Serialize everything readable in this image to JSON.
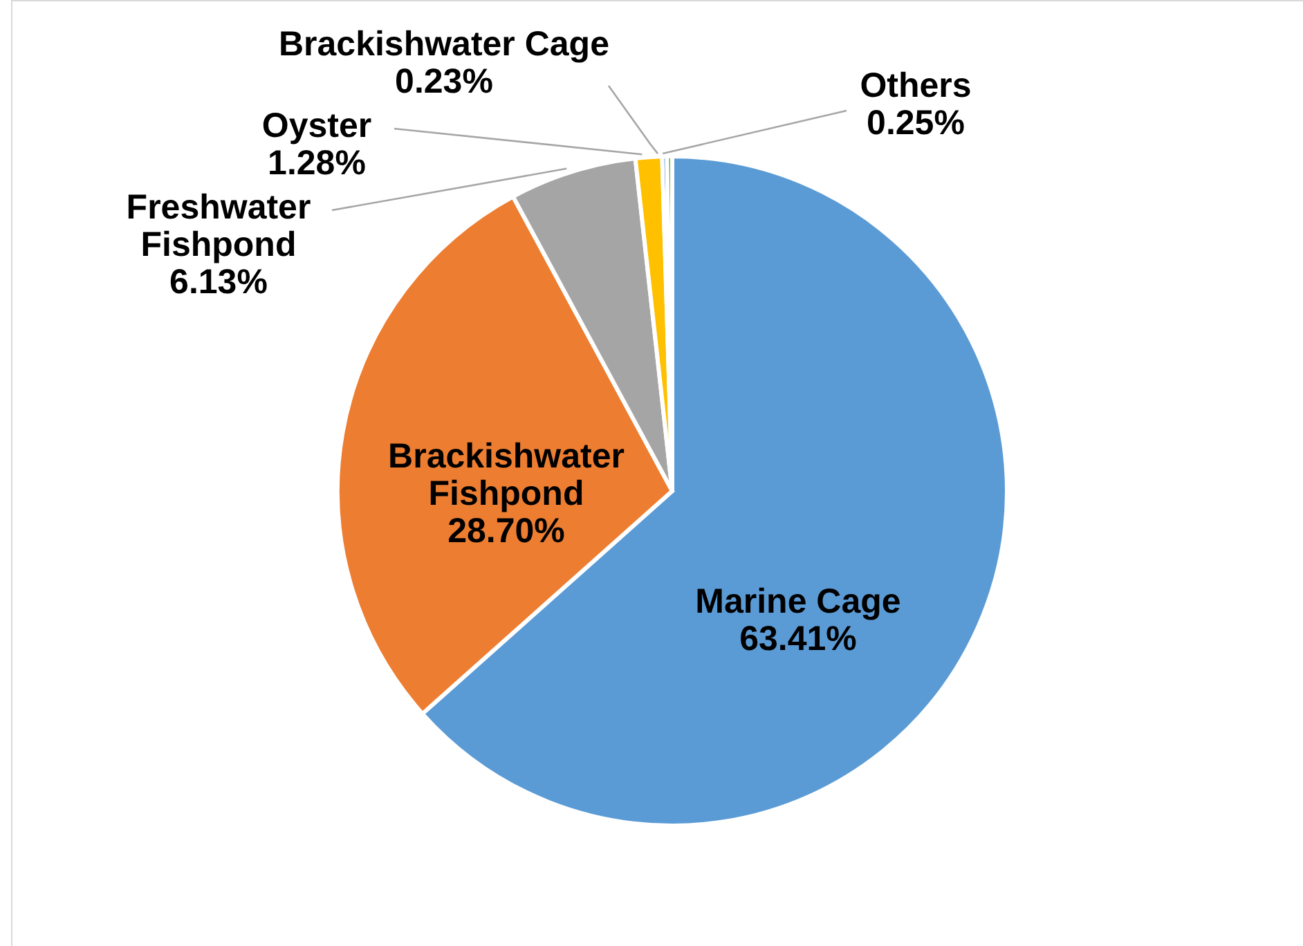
{
  "chart_data": {
    "type": "pie",
    "categories": [
      "Marine Cage",
      "Brackishwater Fishpond",
      "Freshwater Fishpond",
      "Oyster",
      "Brackishwater Cage",
      "Others"
    ],
    "values": [
      63.41,
      28.7,
      6.13,
      1.28,
      0.23,
      0.25
    ],
    "value_labels": [
      "63.41%",
      "28.70%",
      "6.13%",
      "1.28%",
      "0.23%",
      "0.25%"
    ],
    "colors": [
      "#5b9bd5",
      "#ed7d31",
      "#a5a5a5",
      "#ffc000",
      "#4472c4",
      "#70ad47"
    ]
  }
}
